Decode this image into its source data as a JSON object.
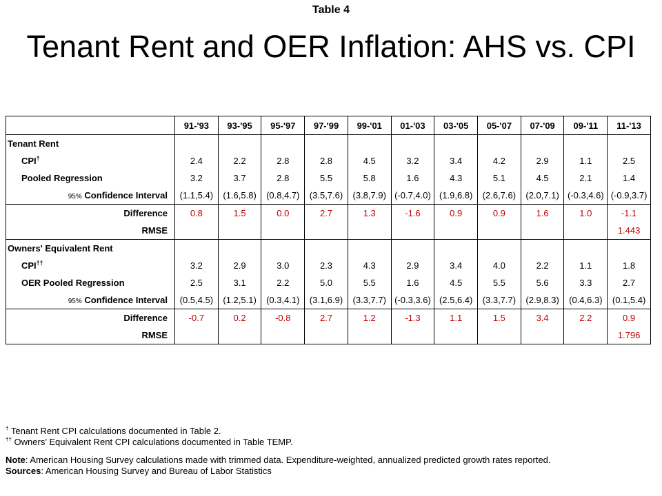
{
  "kicker": "Table 4",
  "title": "Tenant Rent and OER Inflation: AHS vs. CPI",
  "columns": [
    "91-'93",
    "93-'95",
    "95-'97",
    "97-'99",
    "99-'01",
    "01-'03",
    "03-'05",
    "05-'07",
    "07-'09",
    "09-'11",
    "11-'13"
  ],
  "sections": [
    {
      "label": "Tenant Rent",
      "cpi_label": "CPI",
      "cpi_mark": "†",
      "cpi": [
        "2.4",
        "2.2",
        "2.8",
        "2.8",
        "4.5",
        "3.2",
        "3.4",
        "4.2",
        "2.9",
        "1.1",
        "2.5"
      ],
      "reg_label": "Pooled Regression",
      "reg": [
        "3.2",
        "3.7",
        "2.8",
        "5.5",
        "5.8",
        "1.6",
        "4.3",
        "5.1",
        "4.5",
        "2.1",
        "1.4"
      ],
      "ci_pct": "95%",
      "ci_label": "Confidence Interval",
      "ci": [
        "(1.1,5.4)",
        "(1.6,5.8)",
        "(0.8,4.7)",
        "(3.5,7.6)",
        "(3.8,7.9)",
        "(-0.7,4.0)",
        "(1.9,6.8)",
        "(2.6,7.6)",
        "(2.0,7.1)",
        "(-0.3,4.6)",
        "(-0.9,3.7)"
      ],
      "diff_label": "Difference",
      "diff": [
        "0.8",
        "1.5",
        "0.0",
        "2.7",
        "1.3",
        "-1.6",
        "0.9",
        "0.9",
        "1.6",
        "1.0",
        "-1.1"
      ],
      "rmse_label": "RMSE",
      "rmse": "1.443"
    },
    {
      "label": "Owners' Equivalent Rent",
      "cpi_label": "CPI",
      "cpi_mark": "††",
      "cpi": [
        "3.2",
        "2.9",
        "3.0",
        "2.3",
        "4.3",
        "2.9",
        "3.4",
        "4.0",
        "2.2",
        "1.1",
        "1.8"
      ],
      "reg_label": "OER Pooled Regression",
      "reg": [
        "2.5",
        "3.1",
        "2.2",
        "5.0",
        "5.5",
        "1.6",
        "4.5",
        "5.5",
        "5.6",
        "3.3",
        "2.7"
      ],
      "ci_pct": "95%",
      "ci_label": "Confidence Interval",
      "ci": [
        "(0.5,4.5)",
        "(1.2,5.1)",
        "(0.3,4.1)",
        "(3.1,6.9)",
        "(3.3,7.7)",
        "(-0.3,3.6)",
        "(2.5,6.4)",
        "(3.3,7.7)",
        "(2.9,8.3)",
        "(0.4,6.3)",
        "(0.1,5.4)"
      ],
      "diff_label": "Difference",
      "diff": [
        "-0.7",
        "0.2",
        "-0.8",
        "2.7",
        "1.2",
        "-1.3",
        "1.1",
        "1.5",
        "3.4",
        "2.2",
        "0.9"
      ],
      "rmse_label": "RMSE",
      "rmse": "1.796"
    }
  ],
  "footnotes": [
    {
      "mark": "†",
      "text": "Tenant Rent CPI calculations documented in Table 2."
    },
    {
      "mark": "††",
      "text": "Owners’ Equivalent Rent CPI calculations  documented in Table TEMP."
    }
  ],
  "note": {
    "label": "Note",
    "text": ": American Housing Survey calculations made with trimmed data. Expenditure-weighted, annualized predicted growth rates reported."
  },
  "sources": {
    "label": "Sources",
    "text": ": American Housing Survey and Bureau of Labor Statistics"
  },
  "colors": {
    "difference": "#c00000",
    "text": "#000000",
    "rule": "#000000"
  }
}
